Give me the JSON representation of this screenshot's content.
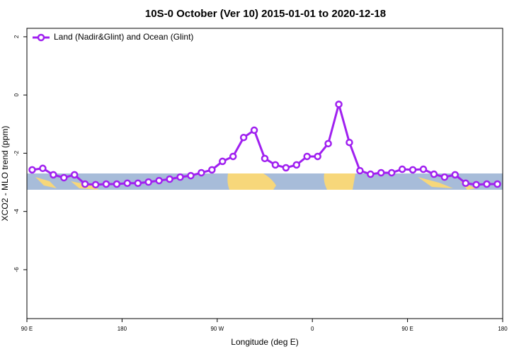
{
  "chart_data": {
    "type": "line",
    "title": "10S-0 October (Ver 10)   2015-01-01 to 2020-12-18",
    "x_label": "Longitude (deg E)",
    "y_label": "XCO2 - MLO trend (ppm)",
    "x": [
      95,
      105,
      115,
      125,
      135,
      145,
      155,
      165,
      175,
      185,
      195,
      205,
      215,
      225,
      235,
      245,
      255,
      265,
      275,
      285,
      295,
      305,
      315,
      325,
      335,
      345,
      355,
      365,
      375,
      385,
      395,
      405,
      415,
      425,
      435,
      445,
      455,
      465,
      475,
      485,
      495,
      505,
      515,
      525,
      535
    ],
    "series": [
      {
        "name": "Land (Nadir&Glint) and Ocean (Glint)",
        "color": "#a020f0",
        "values": [
          -2.57,
          -2.52,
          -2.74,
          -2.84,
          -2.74,
          -3.06,
          -3.08,
          -3.06,
          -3.06,
          -3.03,
          -3.03,
          -2.99,
          -2.94,
          -2.89,
          -2.82,
          -2.77,
          -2.67,
          -2.57,
          -2.28,
          -2.11,
          -1.46,
          -1.21,
          -2.18,
          -2.4,
          -2.5,
          -2.4,
          -2.11,
          -2.11,
          -1.67,
          -0.32,
          -1.63,
          -2.6,
          -2.72,
          -2.67,
          -2.67,
          -2.55,
          -2.57,
          -2.55,
          -2.72,
          -2.82,
          -2.74,
          -3.03,
          -3.08,
          -3.06,
          -3.06
        ]
      }
    ],
    "xlim": [
      90,
      540
    ],
    "xticks": [
      {
        "value": 90,
        "label": "90 E"
      },
      {
        "value": 180,
        "label": "180"
      },
      {
        "value": 270,
        "label": "90 W"
      },
      {
        "value": 360,
        "label": "0"
      },
      {
        "value": 450,
        "label": "90 E"
      },
      {
        "value": 540,
        "label": "180"
      }
    ],
    "ylim": [
      -7.68,
      2.29
    ],
    "yticks": [
      2,
      0,
      -2,
      -4,
      -6
    ],
    "legend": "top-left"
  }
}
